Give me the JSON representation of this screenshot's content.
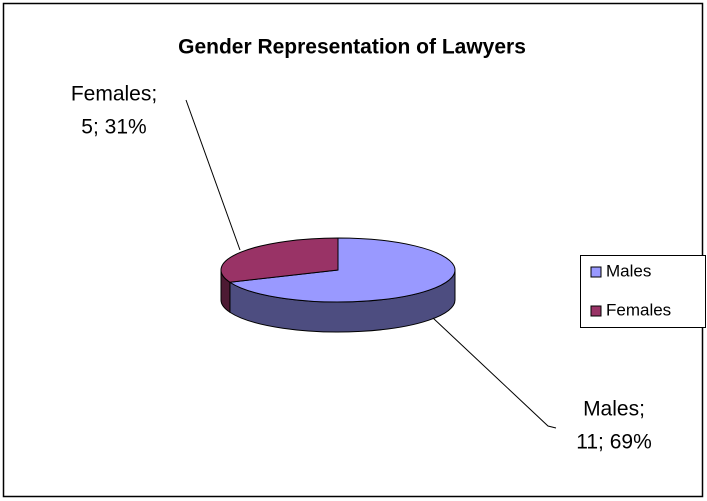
{
  "chart_data": {
    "type": "pie",
    "title": "Gender Representation of Lawyers",
    "categories": [
      "Males",
      "Females"
    ],
    "values": [
      11,
      5
    ],
    "value_labels": [
      [
        "Males;",
        "11; 69%"
      ],
      [
        "Females;",
        "5; 31%"
      ]
    ],
    "colors": [
      "#9999ff",
      "#993366"
    ],
    "legend": "right"
  }
}
